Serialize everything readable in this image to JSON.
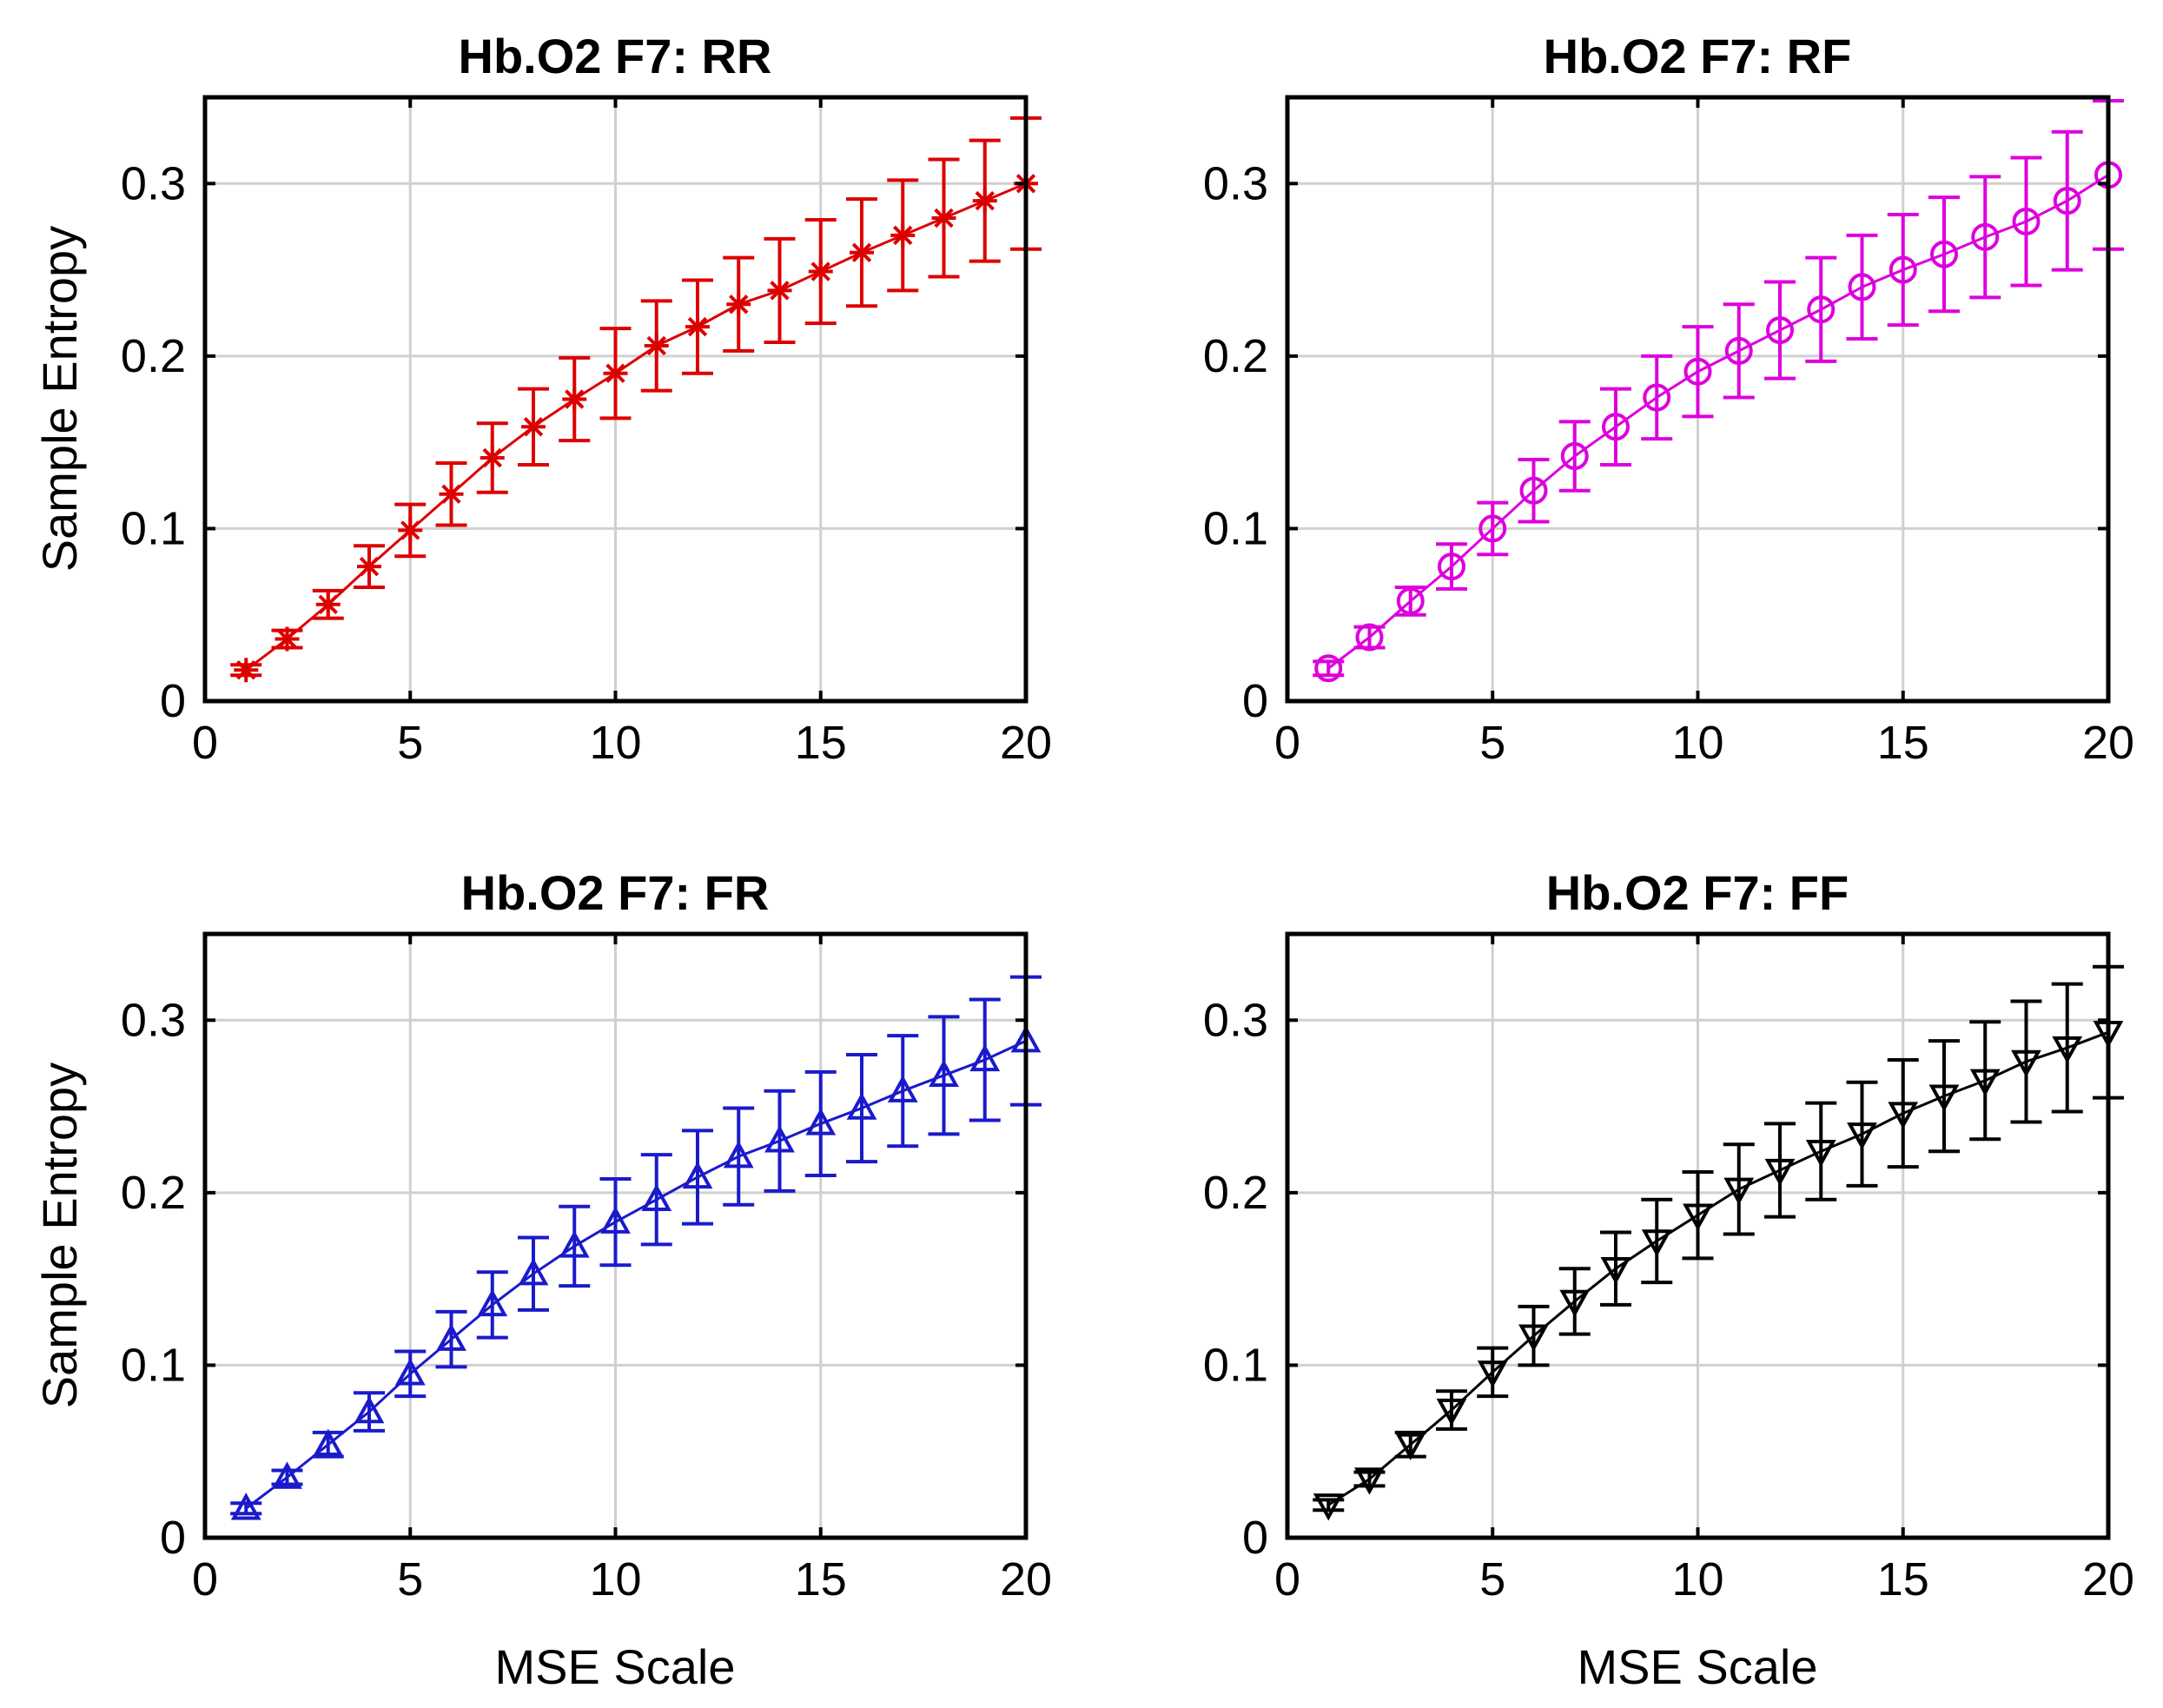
{
  "chart_data": [
    {
      "type": "line",
      "title": "Hb.O2 F7: RR",
      "xlabel": "",
      "ylabel": "Sample Entropy",
      "xlim": [
        0,
        20
      ],
      "ylim": [
        0,
        0.35
      ],
      "xticks": [
        "0",
        "5",
        "10",
        "15",
        "20"
      ],
      "yticks": [
        "0",
        "0.1",
        "0.2",
        "0.3"
      ],
      "grid": true,
      "marker": "star",
      "color": "#dd0000",
      "x": [
        1,
        2,
        3,
        4,
        5,
        6,
        7,
        8,
        9,
        10,
        11,
        12,
        13,
        14,
        15,
        16,
        17,
        18,
        19,
        20
      ],
      "y": [
        0.018,
        0.036,
        0.056,
        0.078,
        0.099,
        0.12,
        0.141,
        0.159,
        0.175,
        0.19,
        0.206,
        0.217,
        0.23,
        0.238,
        0.249,
        0.26,
        0.27,
        0.28,
        0.29,
        0.3
      ],
      "err": [
        0.003,
        0.005,
        0.008,
        0.012,
        0.015,
        0.018,
        0.02,
        0.022,
        0.024,
        0.026,
        0.026,
        0.027,
        0.027,
        0.03,
        0.03,
        0.031,
        0.032,
        0.034,
        0.035,
        0.038
      ]
    },
    {
      "type": "line",
      "title": "Hb.O2 F7: RF",
      "xlabel": "",
      "ylabel": "",
      "xlim": [
        0,
        20
      ],
      "ylim": [
        0,
        0.35
      ],
      "xticks": [
        "0",
        "5",
        "10",
        "15",
        "20"
      ],
      "yticks": [
        "0",
        "0.1",
        "0.2",
        "0.3"
      ],
      "grid": true,
      "marker": "circle",
      "color": "#dd00dd",
      "x": [
        1,
        2,
        3,
        4,
        5,
        6,
        7,
        8,
        9,
        10,
        11,
        12,
        13,
        14,
        15,
        16,
        17,
        18,
        19,
        20
      ],
      "y": [
        0.019,
        0.037,
        0.058,
        0.078,
        0.1,
        0.122,
        0.142,
        0.159,
        0.176,
        0.191,
        0.203,
        0.215,
        0.227,
        0.24,
        0.25,
        0.259,
        0.269,
        0.278,
        0.29,
        0.305
      ],
      "err": [
        0.004,
        0.006,
        0.008,
        0.013,
        0.015,
        0.018,
        0.02,
        0.022,
        0.024,
        0.026,
        0.027,
        0.028,
        0.03,
        0.03,
        0.032,
        0.033,
        0.035,
        0.037,
        0.04,
        0.043
      ]
    },
    {
      "type": "line",
      "title": "Hb.O2 F7: FR",
      "xlabel": "MSE Scale",
      "ylabel": "Sample Entropy",
      "xlim": [
        0,
        20
      ],
      "ylim": [
        0,
        0.35
      ],
      "xticks": [
        "0",
        "5",
        "10",
        "15",
        "20"
      ],
      "yticks": [
        "0",
        "0.1",
        "0.2",
        "0.3"
      ],
      "grid": true,
      "marker": "triangle-up",
      "color": "#1a1acc",
      "x": [
        1,
        2,
        3,
        4,
        5,
        6,
        7,
        8,
        9,
        10,
        11,
        12,
        13,
        14,
        15,
        16,
        17,
        18,
        19,
        20
      ],
      "y": [
        0.017,
        0.035,
        0.054,
        0.073,
        0.095,
        0.115,
        0.135,
        0.153,
        0.169,
        0.183,
        0.196,
        0.209,
        0.221,
        0.23,
        0.24,
        0.249,
        0.259,
        0.268,
        0.277,
        0.288
      ],
      "err": [
        0.003,
        0.004,
        0.007,
        0.011,
        0.013,
        0.016,
        0.019,
        0.021,
        0.023,
        0.025,
        0.026,
        0.027,
        0.028,
        0.029,
        0.03,
        0.031,
        0.032,
        0.034,
        0.035,
        0.037
      ]
    },
    {
      "type": "line",
      "title": "Hb.O2 F7: FF",
      "xlabel": "MSE Scale",
      "ylabel": "",
      "xlim": [
        0,
        20
      ],
      "ylim": [
        0,
        0.35
      ],
      "xticks": [
        "0",
        "5",
        "10",
        "15",
        "20"
      ],
      "yticks": [
        "0",
        "0.1",
        "0.2",
        "0.3"
      ],
      "grid": true,
      "marker": "triangle-down",
      "color": "#000000",
      "x": [
        1,
        2,
        3,
        4,
        5,
        6,
        7,
        8,
        9,
        10,
        11,
        12,
        13,
        14,
        15,
        16,
        17,
        18,
        19,
        20
      ],
      "y": [
        0.019,
        0.034,
        0.054,
        0.074,
        0.096,
        0.117,
        0.137,
        0.156,
        0.172,
        0.187,
        0.202,
        0.213,
        0.224,
        0.234,
        0.246,
        0.256,
        0.265,
        0.276,
        0.284,
        0.293
      ],
      "err": [
        0.003,
        0.004,
        0.007,
        0.011,
        0.014,
        0.017,
        0.019,
        0.021,
        0.024,
        0.025,
        0.026,
        0.027,
        0.028,
        0.03,
        0.031,
        0.032,
        0.034,
        0.035,
        0.037,
        0.038
      ]
    }
  ]
}
